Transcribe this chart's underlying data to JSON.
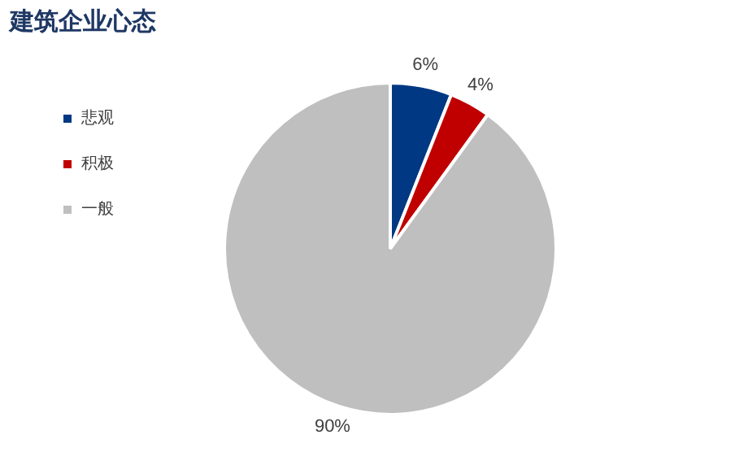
{
  "chart_data": {
    "type": "pie",
    "title": "建筑企业心态",
    "categories": [
      "悲观",
      "积极",
      "一般"
    ],
    "values": [
      6,
      4,
      90
    ],
    "colors": [
      "#003883",
      "#c00000",
      "#bfbfbf"
    ],
    "value_labels": [
      "6%",
      "4%",
      "90%"
    ],
    "legend": "top left"
  }
}
